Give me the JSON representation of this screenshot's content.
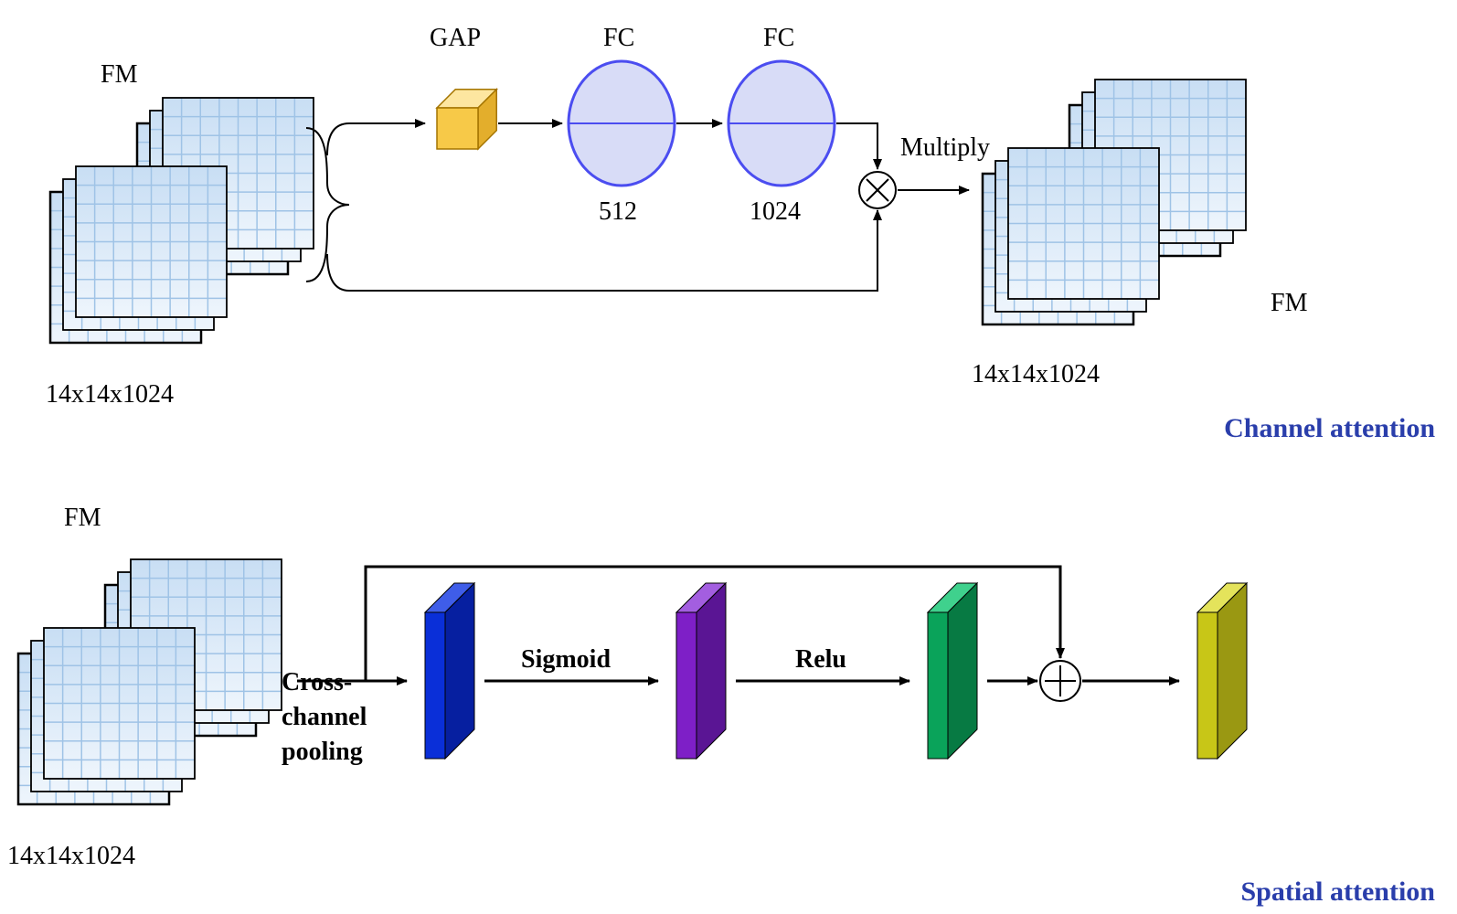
{
  "colors": {
    "gridLight": "#e9f1fb",
    "gridDark": "#c8def4",
    "gridLine": "#9fc3e6",
    "black": "#000000",
    "cubeTop": "#fde6a0",
    "cubeFront": "#f7c948",
    "cubeSide": "#e3ae2c",
    "cubeEdge": "#a47400",
    "fcFill": "#d8dcf7",
    "fcStroke": "#4b4df0",
    "slabBlueF": "#0a2fd8",
    "slabBlueT": "#3f5de8",
    "slabBlueS": "#061fa0",
    "slabPurF": "#7e1fc7",
    "slabPurT": "#a35ee0",
    "slabPurS": "#5a1594",
    "slabGrnF": "#0aa35a",
    "slabGrnT": "#3fd18d",
    "slabGrnS": "#077a43",
    "slabYelF": "#c8c617",
    "slabYelT": "#e4e35b",
    "slabYelS": "#9a9812",
    "titleBlue": "#2a3eab"
  },
  "typography": {
    "labelSize": 28,
    "operatorSize": 28,
    "titleSize": 30
  },
  "channel": {
    "fmLabel": "FM",
    "fmDimLeft": "14x14x1024",
    "fmDimRight": "14x14x1024",
    "fmRightLabel": "FM",
    "gap": "GAP",
    "fc": "FC",
    "fc1": "512",
    "fc2": "1024",
    "multiply": "Multiply",
    "title": "Channel attention"
  },
  "spatial": {
    "fmLabel": "FM",
    "fmDim": "14x14x1024",
    "pool1": "Cross-",
    "pool2": "channel",
    "pool3": "pooling",
    "sigmoid": "Sigmoid",
    "relu": "Relu",
    "title": "Spatial attention"
  }
}
